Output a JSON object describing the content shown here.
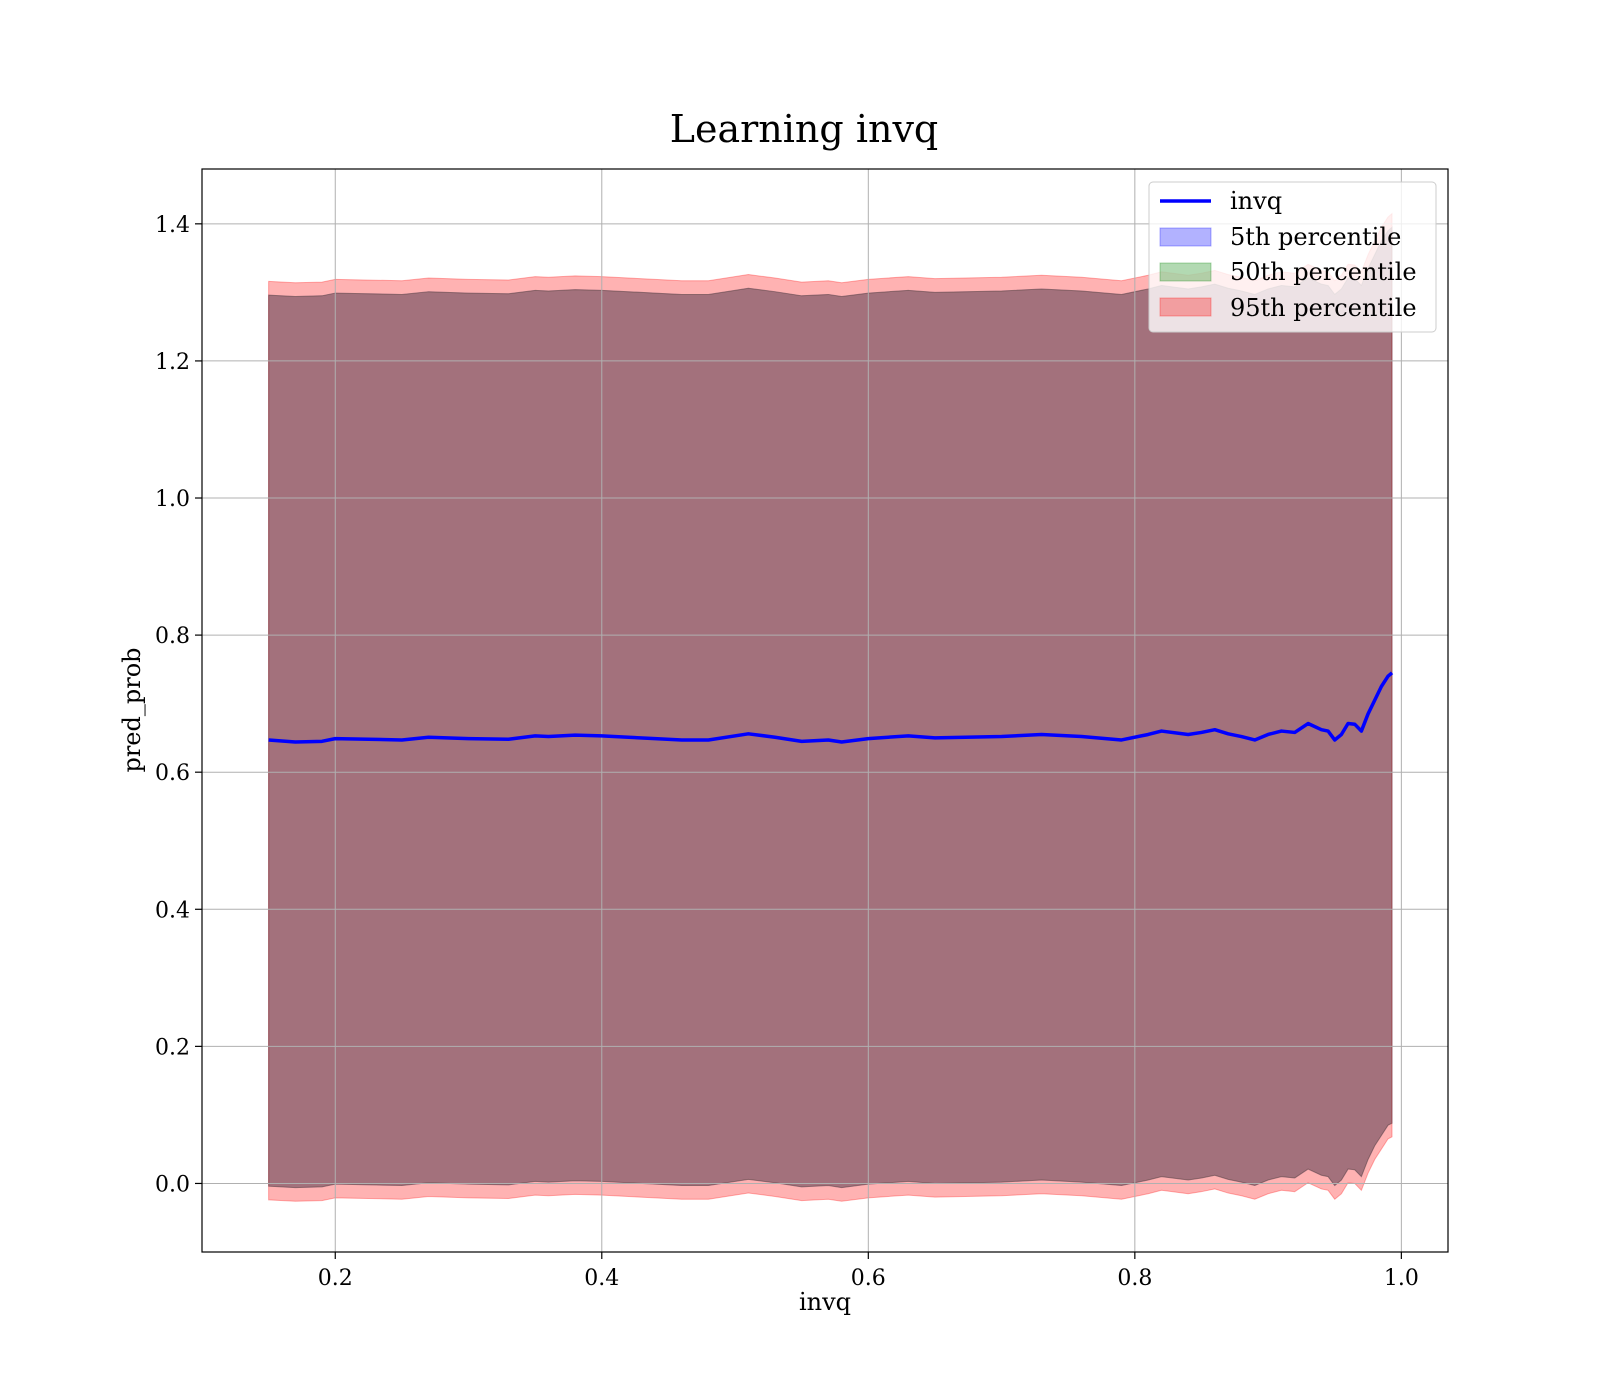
{
  "chart_data": {
    "type": "area",
    "title": "Learning invq",
    "xlabel": "invq",
    "ylabel": "pred_prob",
    "xlim": [
      0.1,
      1.035
    ],
    "ylim": [
      -0.1,
      1.48
    ],
    "xticks": [
      0.2,
      0.4,
      0.6,
      0.8,
      1.0
    ],
    "xtick_labels": [
      "0.2",
      "0.4",
      "0.6",
      "0.8",
      "1.0"
    ],
    "yticks": [
      0.0,
      0.2,
      0.4,
      0.6,
      0.8,
      1.0,
      1.2,
      1.4
    ],
    "ytick_labels": [
      "0.0",
      "0.2",
      "0.4",
      "0.6",
      "0.8",
      "1.0",
      "1.2",
      "1.4"
    ],
    "grid": true,
    "legend_position": "top-right",
    "x": [
      0.15,
      0.17,
      0.19,
      0.2,
      0.25,
      0.27,
      0.3,
      0.33,
      0.35,
      0.36,
      0.38,
      0.4,
      0.42,
      0.44,
      0.46,
      0.48,
      0.51,
      0.53,
      0.55,
      0.57,
      0.58,
      0.6,
      0.63,
      0.65,
      0.7,
      0.73,
      0.76,
      0.79,
      0.81,
      0.82,
      0.84,
      0.85,
      0.86,
      0.87,
      0.88,
      0.89,
      0.9,
      0.91,
      0.92,
      0.93,
      0.94,
      0.945,
      0.95,
      0.955,
      0.96,
      0.965,
      0.97,
      0.975,
      0.98,
      0.985,
      0.99,
      0.993
    ],
    "series": [
      {
        "name": "invq",
        "kind": "line",
        "color": "#0000ff",
        "values": [
          0.647,
          0.644,
          0.645,
          0.649,
          0.647,
          0.651,
          0.649,
          0.648,
          0.653,
          0.652,
          0.654,
          0.653,
          0.651,
          0.649,
          0.647,
          0.647,
          0.656,
          0.651,
          0.645,
          0.647,
          0.644,
          0.649,
          0.653,
          0.65,
          0.652,
          0.655,
          0.652,
          0.647,
          0.655,
          0.66,
          0.655,
          0.658,
          0.662,
          0.656,
          0.652,
          0.647,
          0.655,
          0.66,
          0.658,
          0.671,
          0.662,
          0.66,
          0.647,
          0.655,
          0.671,
          0.67,
          0.66,
          0.685,
          0.705,
          0.725,
          0.74,
          0.745
        ]
      },
      {
        "name": "5th percentile",
        "kind": "band",
        "color": "#0000ff",
        "lower": [
          -0.004,
          -0.006,
          -0.005,
          -0.001,
          -0.003,
          0.001,
          -0.001,
          -0.002,
          0.003,
          0.002,
          0.004,
          0.003,
          0.001,
          -0.001,
          -0.003,
          -0.003,
          0.006,
          0.001,
          -0.005,
          -0.003,
          -0.006,
          -0.001,
          0.003,
          0.0,
          0.002,
          0.005,
          0.002,
          -0.003,
          0.005,
          0.01,
          0.005,
          0.008,
          0.012,
          0.006,
          0.002,
          -0.003,
          0.005,
          0.01,
          0.008,
          0.021,
          0.012,
          0.01,
          -0.003,
          0.005,
          0.021,
          0.02,
          0.01,
          0.035,
          0.055,
          0.07,
          0.085,
          0.088
        ],
        "upper": [
          1.296,
          1.294,
          1.295,
          1.299,
          1.297,
          1.301,
          1.299,
          1.298,
          1.303,
          1.302,
          1.304,
          1.303,
          1.301,
          1.299,
          1.297,
          1.297,
          1.306,
          1.301,
          1.295,
          1.297,
          1.294,
          1.299,
          1.303,
          1.3,
          1.302,
          1.305,
          1.302,
          1.297,
          1.305,
          1.31,
          1.305,
          1.308,
          1.312,
          1.306,
          1.302,
          1.297,
          1.305,
          1.31,
          1.308,
          1.321,
          1.312,
          1.31,
          1.297,
          1.305,
          1.321,
          1.32,
          1.31,
          1.335,
          1.355,
          1.375,
          1.39,
          1.395
        ]
      },
      {
        "name": "50th percentile",
        "kind": "band",
        "color": "#008000",
        "lower": [
          -0.004,
          -0.006,
          -0.005,
          -0.001,
          -0.003,
          0.001,
          -0.001,
          -0.002,
          0.003,
          0.002,
          0.004,
          0.003,
          0.001,
          -0.001,
          -0.003,
          -0.003,
          0.006,
          0.001,
          -0.005,
          -0.003,
          -0.006,
          -0.001,
          0.003,
          0.0,
          0.002,
          0.005,
          0.002,
          -0.003,
          0.005,
          0.01,
          0.005,
          0.008,
          0.012,
          0.006,
          0.002,
          -0.003,
          0.005,
          0.01,
          0.008,
          0.021,
          0.012,
          0.01,
          -0.003,
          0.005,
          0.021,
          0.02,
          0.01,
          0.035,
          0.055,
          0.07,
          0.085,
          0.088
        ],
        "upper": [
          1.296,
          1.294,
          1.295,
          1.299,
          1.297,
          1.301,
          1.299,
          1.298,
          1.303,
          1.302,
          1.304,
          1.303,
          1.301,
          1.299,
          1.297,
          1.297,
          1.306,
          1.301,
          1.295,
          1.297,
          1.294,
          1.299,
          1.303,
          1.3,
          1.302,
          1.305,
          1.302,
          1.297,
          1.305,
          1.31,
          1.305,
          1.308,
          1.312,
          1.306,
          1.302,
          1.297,
          1.305,
          1.31,
          1.308,
          1.321,
          1.312,
          1.31,
          1.297,
          1.305,
          1.321,
          1.32,
          1.31,
          1.335,
          1.355,
          1.375,
          1.39,
          1.395
        ]
      },
      {
        "name": "95th percentile",
        "kind": "band",
        "color": "#ff0000",
        "lower": [
          -0.024,
          -0.026,
          -0.025,
          -0.021,
          -0.023,
          -0.019,
          -0.021,
          -0.022,
          -0.017,
          -0.018,
          -0.016,
          -0.017,
          -0.019,
          -0.021,
          -0.023,
          -0.023,
          -0.014,
          -0.019,
          -0.025,
          -0.023,
          -0.026,
          -0.021,
          -0.017,
          -0.02,
          -0.018,
          -0.015,
          -0.018,
          -0.023,
          -0.015,
          -0.01,
          -0.015,
          -0.012,
          -0.008,
          -0.014,
          -0.018,
          -0.023,
          -0.015,
          -0.01,
          -0.012,
          0.001,
          -0.008,
          -0.01,
          -0.023,
          -0.015,
          0.001,
          0.0,
          -0.01,
          0.015,
          0.035,
          0.05,
          0.065,
          0.068
        ],
        "upper": [
          1.316,
          1.314,
          1.315,
          1.319,
          1.317,
          1.321,
          1.319,
          1.318,
          1.323,
          1.322,
          1.324,
          1.323,
          1.321,
          1.319,
          1.317,
          1.317,
          1.326,
          1.321,
          1.315,
          1.317,
          1.314,
          1.319,
          1.323,
          1.32,
          1.322,
          1.325,
          1.322,
          1.317,
          1.325,
          1.33,
          1.325,
          1.328,
          1.332,
          1.326,
          1.322,
          1.317,
          1.325,
          1.33,
          1.328,
          1.341,
          1.332,
          1.33,
          1.317,
          1.325,
          1.341,
          1.34,
          1.33,
          1.355,
          1.375,
          1.395,
          1.41,
          1.415
        ]
      }
    ]
  }
}
